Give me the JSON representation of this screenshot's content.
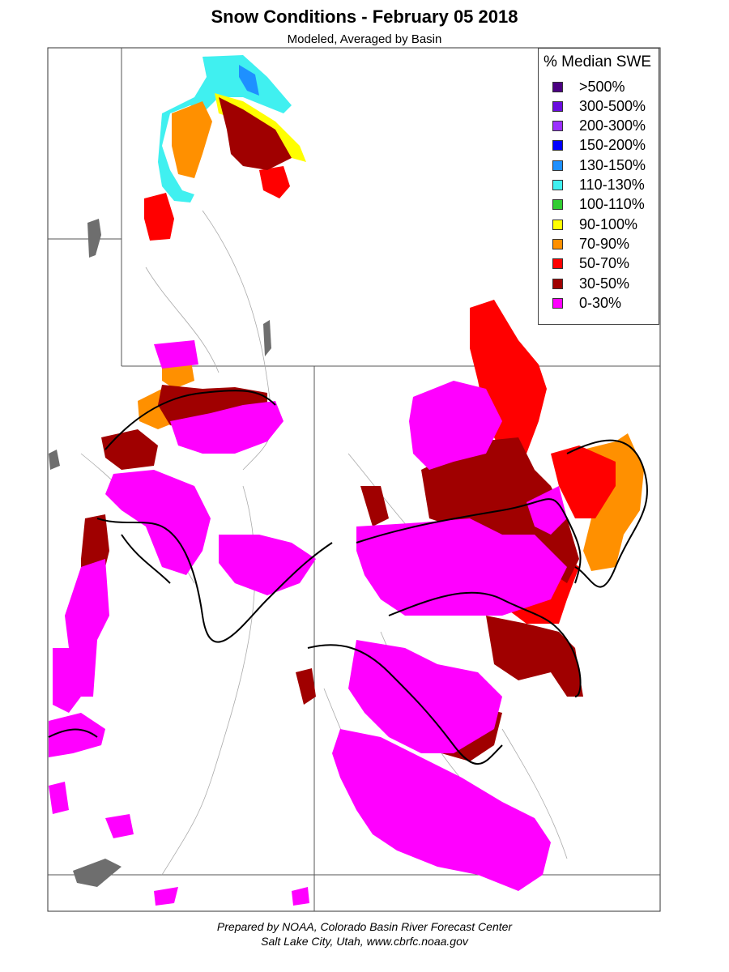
{
  "header": {
    "title": "Snow Conditions - February 05 2018",
    "subtitle": "Modeled, Averaged by Basin"
  },
  "legend": {
    "title": "% Median SWE",
    "items": [
      {
        "label": ">500%",
        "color": "#4b0082"
      },
      {
        "label": "300-500%",
        "color": "#6a0dde"
      },
      {
        "label": "200-300%",
        "color": "#9b30ff"
      },
      {
        "label": "150-200%",
        "color": "#0000ff"
      },
      {
        "label": "130-150%",
        "color": "#1e90ff"
      },
      {
        "label": "110-130%",
        "color": "#40f0f0"
      },
      {
        "label": "100-110%",
        "color": "#32cd32"
      },
      {
        "label": "90-100%",
        "color": "#ffff00"
      },
      {
        "label": "70-90%",
        "color": "#ff9000"
      },
      {
        "label": "50-70%",
        "color": "#ff0000"
      },
      {
        "label": "30-50%",
        "color": "#a00000"
      },
      {
        "label": "0-30%",
        "color": "#ff00ff"
      }
    ]
  },
  "footer": {
    "line1": "Prepared by NOAA, Colorado Basin River Forecast Center",
    "line2": "Salt Lake City, Utah, www.cbrfc.noaa.gov"
  }
}
